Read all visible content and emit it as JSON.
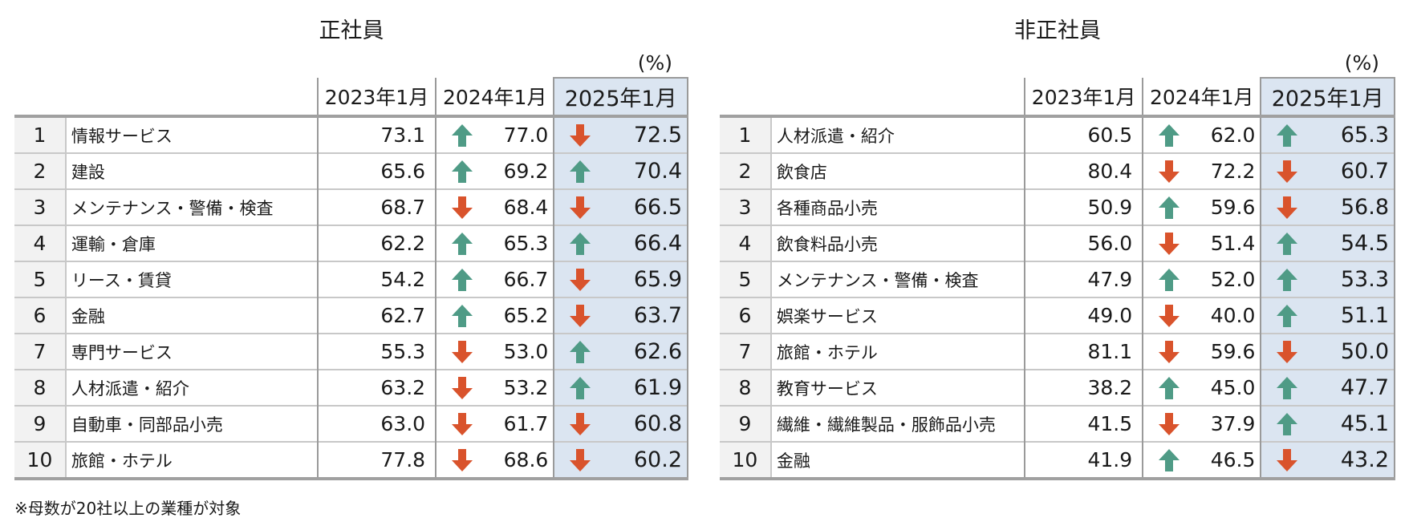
{
  "colors": {
    "up": "#4f9b86",
    "down": "#d9532c",
    "highlight": "#dbe5f1",
    "rank_bg": "#f2f2f2"
  },
  "unit": "(%)",
  "headers": [
    "2023年1月",
    "2024年1月",
    "2025年1月"
  ],
  "note": "※母数が20社以上の業種が対象",
  "tables": [
    {
      "title": "正社員",
      "rows": [
        {
          "rank": "1",
          "industry": "情報サービス",
          "v2023": "73.1",
          "v2024": "77.0",
          "a2024": "up",
          "v2025": "72.5",
          "a2025": "down"
        },
        {
          "rank": "2",
          "industry": "建設",
          "v2023": "65.6",
          "v2024": "69.2",
          "a2024": "up",
          "v2025": "70.4",
          "a2025": "up"
        },
        {
          "rank": "3",
          "industry": "メンテナンス・警備・検査",
          "v2023": "68.7",
          "v2024": "68.4",
          "a2024": "down",
          "v2025": "66.5",
          "a2025": "down"
        },
        {
          "rank": "4",
          "industry": "運輸・倉庫",
          "v2023": "62.2",
          "v2024": "65.3",
          "a2024": "up",
          "v2025": "66.4",
          "a2025": "up"
        },
        {
          "rank": "5",
          "industry": "リース・賃貸",
          "v2023": "54.2",
          "v2024": "66.7",
          "a2024": "up",
          "v2025": "65.9",
          "a2025": "down"
        },
        {
          "rank": "6",
          "industry": "金融",
          "v2023": "62.7",
          "v2024": "65.2",
          "a2024": "up",
          "v2025": "63.7",
          "a2025": "down"
        },
        {
          "rank": "7",
          "industry": "専門サービス",
          "v2023": "55.3",
          "v2024": "53.0",
          "a2024": "down",
          "v2025": "62.6",
          "a2025": "up"
        },
        {
          "rank": "8",
          "industry": "人材派遣・紹介",
          "v2023": "63.2",
          "v2024": "53.2",
          "a2024": "down",
          "v2025": "61.9",
          "a2025": "up"
        },
        {
          "rank": "9",
          "industry": "自動車・同部品小売",
          "v2023": "63.0",
          "v2024": "61.7",
          "a2024": "down",
          "v2025": "60.8",
          "a2025": "down"
        },
        {
          "rank": "10",
          "industry": "旅館・ホテル",
          "v2023": "77.8",
          "v2024": "68.6",
          "a2024": "down",
          "v2025": "60.2",
          "a2025": "down"
        }
      ]
    },
    {
      "title": "非正社員",
      "rows": [
        {
          "rank": "1",
          "industry": "人材派遣・紹介",
          "v2023": "60.5",
          "v2024": "62.0",
          "a2024": "up",
          "v2025": "65.3",
          "a2025": "up"
        },
        {
          "rank": "2",
          "industry": "飲食店",
          "v2023": "80.4",
          "v2024": "72.2",
          "a2024": "down",
          "v2025": "60.7",
          "a2025": "down"
        },
        {
          "rank": "3",
          "industry": "各種商品小売",
          "v2023": "50.9",
          "v2024": "59.6",
          "a2024": "up",
          "v2025": "56.8",
          "a2025": "down"
        },
        {
          "rank": "4",
          "industry": "飲食料品小売",
          "v2023": "56.0",
          "v2024": "51.4",
          "a2024": "down",
          "v2025": "54.5",
          "a2025": "up"
        },
        {
          "rank": "5",
          "industry": "メンテナンス・警備・検査",
          "v2023": "47.9",
          "v2024": "52.0",
          "a2024": "up",
          "v2025": "53.3",
          "a2025": "up"
        },
        {
          "rank": "6",
          "industry": "娯楽サービス",
          "v2023": "49.0",
          "v2024": "40.0",
          "a2024": "down",
          "v2025": "51.1",
          "a2025": "up"
        },
        {
          "rank": "7",
          "industry": "旅館・ホテル",
          "v2023": "81.1",
          "v2024": "59.6",
          "a2024": "down",
          "v2025": "50.0",
          "a2025": "down"
        },
        {
          "rank": "8",
          "industry": "教育サービス",
          "v2023": "38.2",
          "v2024": "45.0",
          "a2024": "up",
          "v2025": "47.7",
          "a2025": "up"
        },
        {
          "rank": "9",
          "industry": "繊維・繊維製品・服飾品小売",
          "v2023": "41.5",
          "v2024": "37.9",
          "a2024": "down",
          "v2025": "45.1",
          "a2025": "up"
        },
        {
          "rank": "10",
          "industry": "金融",
          "v2023": "41.9",
          "v2024": "46.5",
          "a2024": "up",
          "v2025": "43.2",
          "a2025": "down"
        }
      ]
    }
  ]
}
